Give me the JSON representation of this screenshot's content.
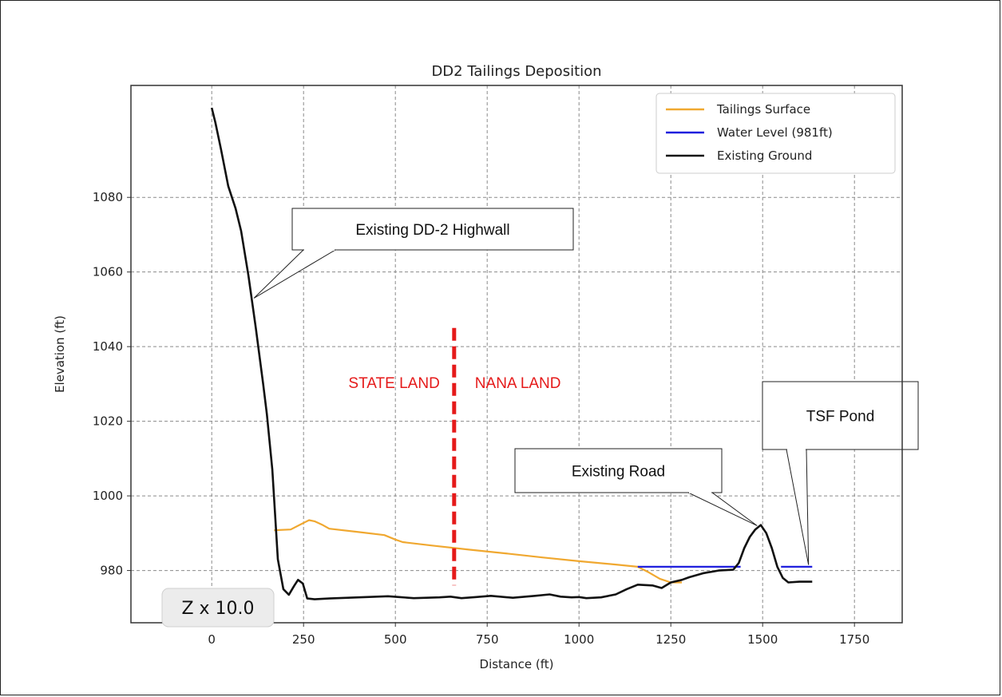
{
  "chart_data": {
    "type": "line",
    "title": "DD2 Tailings Deposition",
    "xlabel": "Distance (ft)",
    "ylabel": "Elevation (ft)",
    "xlim": [
      -220,
      1880
    ],
    "ylim": [
      966,
      1110
    ],
    "xticks": [
      0,
      250,
      500,
      750,
      1000,
      1250,
      1500,
      1750
    ],
    "yticks": [
      980,
      1000,
      1020,
      1040,
      1060,
      1080
    ],
    "grid": true,
    "legend_position": "top-right",
    "series": [
      {
        "name": "Tailings Surface",
        "color": "#f0a830",
        "x": [
          170,
          215,
          245,
          265,
          280,
          300,
          320,
          400,
          470,
          500,
          520,
          600,
          700,
          800,
          900,
          1000,
          1100,
          1160,
          1190,
          1220,
          1250,
          1280
        ],
        "y": [
          990.8,
          991.0,
          992.5,
          993.5,
          993.2,
          992.3,
          991.2,
          990.3,
          989.5,
          988.3,
          987.6,
          986.7,
          985.6,
          984.6,
          983.5,
          982.5,
          981.6,
          981.0,
          979.5,
          977.8,
          976.8,
          976.8
        ]
      },
      {
        "name": "Water Level (981ft)",
        "color": "#1f1fdd",
        "segments": [
          {
            "x": [
              1160,
              1440
            ],
            "y": [
              981,
              981
            ]
          },
          {
            "x": [
              1550,
              1635
            ],
            "y": [
              981,
              981
            ]
          }
        ]
      },
      {
        "name": "Existing Ground",
        "color": "#111111",
        "x": [
          0,
          10,
          25,
          45,
          65,
          80,
          100,
          120,
          140,
          150,
          165,
          180,
          195,
          210,
          225,
          235,
          248,
          260,
          280,
          320,
          400,
          480,
          510,
          550,
          620,
          650,
          680,
          720,
          760,
          820,
          880,
          920,
          950,
          980,
          1000,
          1020,
          1060,
          1100,
          1130,
          1160,
          1200,
          1225,
          1250,
          1280,
          1300,
          1340,
          1380,
          1420,
          1435,
          1450,
          1465,
          1480,
          1495,
          1510,
          1525,
          1540,
          1555,
          1570,
          1600,
          1635
        ],
        "y": [
          1104,
          1100,
          1093,
          1083,
          1077,
          1071,
          1059,
          1045,
          1030,
          1022,
          1007,
          983,
          975,
          973.5,
          976,
          977.5,
          976.5,
          972.5,
          972.3,
          972.5,
          972.8,
          973.1,
          972.9,
          972.6,
          972.8,
          973.0,
          972.6,
          972.9,
          973.2,
          972.7,
          973.2,
          973.6,
          973.0,
          972.8,
          972.9,
          972.6,
          972.8,
          973.6,
          975.0,
          976.2,
          976.0,
          975.3,
          976.8,
          977.5,
          978.2,
          979.3,
          980.0,
          980.2,
          982.0,
          986.0,
          989.0,
          991.0,
          992.2,
          990.0,
          986.0,
          981.0,
          978.0,
          976.8,
          977.0,
          977.0
        ]
      }
    ],
    "annotations": [
      {
        "label": "Existing DD-2 Highwall",
        "points_to": [
          115,
          1053
        ]
      },
      {
        "label": "Existing Road",
        "points_to": [
          1485,
          992
        ]
      },
      {
        "label": "TSF Pond",
        "points_to": [
          1625,
          981.5
        ]
      }
    ],
    "land_boundary": {
      "x": 660,
      "y": [
        976,
        1045
      ],
      "color": "#e51a1a",
      "left_label": "STATE LAND",
      "right_label": "NANA LAND"
    },
    "scale_note": "Z x 10.0"
  }
}
